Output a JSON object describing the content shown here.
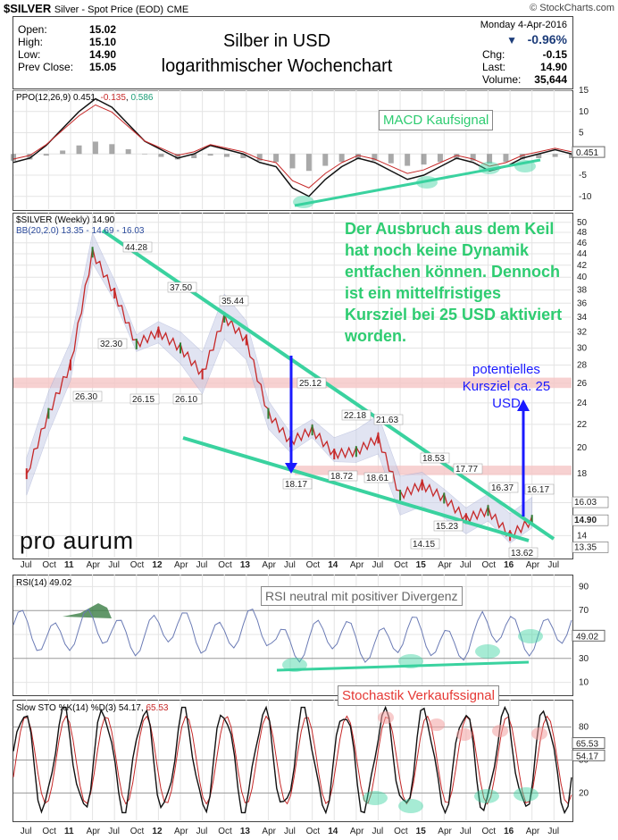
{
  "header": {
    "symbol": "$SILVER",
    "desc": "Silver - Spot Price (EOD)",
    "exchange": "CME",
    "brand": "© StockCharts.com",
    "date": "Monday  4-Apr-2016",
    "change_pct": "-0.96%",
    "ohlc": [
      {
        "label": "Open:",
        "value": "15.02"
      },
      {
        "label": "High:",
        "value": "15.10"
      },
      {
        "label": "Low:",
        "value": "14.90"
      },
      {
        "label": "Prev Close:",
        "value": "15.05"
      }
    ],
    "right": [
      {
        "label": "Chg:",
        "value": "-0.15"
      },
      {
        "label": "Last:",
        "value": "14.90"
      },
      {
        "label": "Volume:",
        "value": "35,644"
      }
    ]
  },
  "title_box": {
    "line1": "Silber in USD",
    "line2": "logarithmischer Wochenchart"
  },
  "colors": {
    "green": "#2ecc71",
    "blue": "#1a1aff",
    "red": "#e53935",
    "band": "#f5c6c6"
  },
  "ppo_panel": {
    "legend": "PPO(12,26,9)",
    "values": [
      "0.451",
      "-0.135",
      "0.586"
    ],
    "yticks": [
      "15",
      "10",
      "5",
      "0",
      "-5",
      "-10"
    ],
    "last_label": "0.451",
    "annotation": "MACD Kaufsignal"
  },
  "price_panel": {
    "legend1": "$SILVER (Weekly) 14.90",
    "legend2_prefix": "BB(20,2.0) ",
    "legend2_values": [
      "13.35",
      "14.69",
      "16.03"
    ],
    "yticks": [
      "50",
      "48",
      "46",
      "44",
      "42",
      "40",
      "38",
      "36",
      "34",
      "32",
      "30",
      "28",
      "26",
      "24",
      "22",
      "20",
      "18",
      "16",
      "14"
    ],
    "right_labels": [
      "16.03",
      "14.90",
      "13.35"
    ],
    "point_labels": [
      "44.28",
      "37.50",
      "35.44",
      "32.30",
      "26.30",
      "26.15",
      "26.10",
      "25.12",
      "22.18",
      "21.63",
      "18.17",
      "18.72",
      "18.61",
      "18.53",
      "17.77",
      "16.37",
      "16.17",
      "15.23",
      "14.15",
      "13.62"
    ],
    "annotation_text": "Der Ausbruch aus dem Keil hat noch keine Dynamik entfachen können. Dennoch ist ein mittelfristiges Kursziel bei 25 USD aktiviert worden.",
    "target_text": "potentielles Kursziel ca. 25 USD",
    "logo": "pro aurum"
  },
  "rsi_panel": {
    "legend": "RSI(14) 49.02",
    "yticks": [
      "90",
      "70",
      "50",
      "30",
      "10"
    ],
    "last_label": "49.02",
    "annotation": "RSI neutral mit positiver Divergenz"
  },
  "sto_panel": {
    "legend": "Slow STO %K(14) %D(3) 54.17,",
    "legend_value2": "65.53",
    "yticks": [
      "80",
      "50",
      "20"
    ],
    "last_labels": [
      "65.53",
      "54.17"
    ],
    "annotation": "Stochastik Verkaufssignal"
  },
  "x_axis": [
    "Apr",
    "Jul",
    "Oct",
    "11",
    "Apr",
    "Jul",
    "Oct",
    "12",
    "Apr",
    "Jul",
    "Oct",
    "13",
    "Apr",
    "Jul",
    "Oct",
    "14",
    "Apr",
    "Jul",
    "Oct",
    "15",
    "Apr",
    "Jul",
    "Oct",
    "16",
    "Apr",
    "Jul"
  ],
  "chart_data": {
    "type": "line",
    "title": "Silber in USD",
    "subtitle": "logarithmischer Wochenchart",
    "ylim": [
      13,
      51
    ],
    "log_scale": true,
    "series": [
      {
        "name": "$SILVER (Weekly)",
        "x": [
          "2010-07",
          "2010-10",
          "2011-01",
          "2011-04",
          "2011-07",
          "2011-10",
          "2012-01",
          "2012-04",
          "2012-07",
          "2012-10",
          "2013-01",
          "2013-04",
          "2013-07",
          "2013-10",
          "2014-01",
          "2014-04",
          "2014-07",
          "2014-10",
          "2015-01",
          "2015-04",
          "2015-07",
          "2015-10",
          "2016-01",
          "2016-04"
        ],
        "values": [
          18,
          23,
          28,
          44.28,
          37.5,
          30.5,
          32,
          30,
          27,
          34,
          31,
          23,
          20.5,
          21.5,
          19.5,
          19.7,
          20.8,
          16.5,
          17.2,
          16.3,
          15,
          15.5,
          14,
          14.9
        ]
      }
    ]
  }
}
